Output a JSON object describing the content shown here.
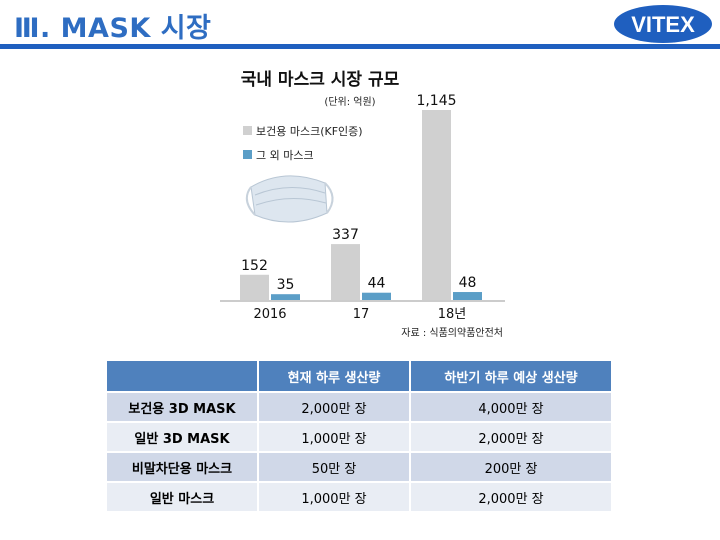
{
  "slide": {
    "title": "Ⅲ. MASK 시장",
    "logo_text": "VITEX"
  },
  "chart_data": {
    "type": "bar",
    "title": "국내 마스크 시장 규모",
    "subtitle": "(단위: 억원)",
    "categories": [
      "2016",
      "17",
      "18년"
    ],
    "series": [
      {
        "name": "보건용 마스크(KF인증)",
        "color": "#d0d0d0",
        "values": [
          152,
          337,
          1145
        ],
        "labels": [
          "152",
          "337",
          "1,145"
        ]
      },
      {
        "name": "그 외 마스크",
        "color": "#5b9ec7",
        "values": [
          35,
          44,
          48
        ],
        "labels": [
          "35",
          "44",
          "48"
        ]
      }
    ],
    "ylim": [
      0,
      1145
    ],
    "source": "자료 : 식품의약품안전처",
    "legend_position": "top-left",
    "grid": false
  },
  "table": {
    "headers": [
      "",
      "현재 하루 생산량",
      "하반기 하루 예상 생산량"
    ],
    "rows": [
      {
        "label": "보건용 3D MASK",
        "current": "2,000만 장",
        "expected": "4,000만 장"
      },
      {
        "label": "일반 3D MASK",
        "current": "1,000만 장",
        "expected": "2,000만 장"
      },
      {
        "label": "비말차단용 마스크",
        "current": "50만 장",
        "expected": "200만 장"
      },
      {
        "label": "일반 마스크",
        "current": "1,000만 장",
        "expected": "2,000만 장"
      }
    ]
  }
}
